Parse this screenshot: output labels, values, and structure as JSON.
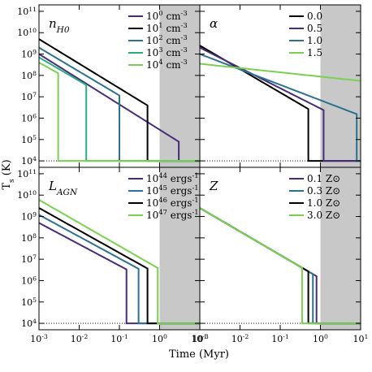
{
  "figure": {
    "xlabel": "Time (Myr)",
    "ylabel": "T_s (K)",
    "x_tick_labels": [
      "10^-3",
      "10^-2",
      "10^-1",
      "10^0",
      "10^1"
    ],
    "y_tick_labels": [
      "10^4",
      "10^5",
      "10^6",
      "10^7",
      "10^8",
      "10^9",
      "10^10",
      "10^11"
    ]
  },
  "chart_data": [
    {
      "type": "line",
      "panel_label": "n_H0",
      "xscale": "log",
      "yscale": "log",
      "xlim": [
        0.001,
        10
      ],
      "ylim": [
        5000,
        200000000000
      ],
      "shaded_region_x": [
        1,
        10
      ],
      "floor_line": {
        "y": 10000,
        "style": "dotted"
      },
      "legend_position": "top-right",
      "series": [
        {
          "name": "10^0 cm^-3",
          "color": "#472c7a",
          "start_temp": 1000000000,
          "slope": -1.18,
          "cutoff_time": 3.0
        },
        {
          "name": "10^1 cm^-3",
          "color": "#000000",
          "start_temp": 5000000000,
          "slope": -1.15,
          "cutoff_time": 0.5
        },
        {
          "name": "10^2 cm^-3",
          "color": "#2c728e",
          "start_temp": 2000000000,
          "slope": -1.12,
          "cutoff_time": 0.1
        },
        {
          "name": "10^3 cm^-3",
          "color": "#28ae80",
          "start_temp": 700000000,
          "slope": -1.1,
          "cutoff_time": 0.015
        },
        {
          "name": "10^4 cm^-3",
          "color": "#7ad151",
          "start_temp": 400000000,
          "slope": -1.05,
          "cutoff_time": 0.003
        }
      ]
    },
    {
      "type": "line",
      "panel_label": "α",
      "xscale": "log",
      "yscale": "log",
      "xlim": [
        0.001,
        10
      ],
      "ylim": [
        5000,
        200000000000
      ],
      "shaded_region_x": [
        1,
        10
      ],
      "floor_line": {
        "y": 10000,
        "style": "dotted"
      },
      "legend_position": "top-right",
      "series": [
        {
          "name": "0.0",
          "color": "#000000",
          "start_temp": 2500000000,
          "slope": -1.1,
          "cutoff_time": 0.5
        },
        {
          "name": "0.5",
          "color": "#472c7a",
          "start_temp": 2000000000,
          "slope": -0.95,
          "cutoff_time": 1.2
        },
        {
          "name": "1.0",
          "color": "#2c728e",
          "start_temp": 1000000000,
          "slope": -0.72,
          "cutoff_time": 8.0
        },
        {
          "name": "1.5",
          "color": "#7ad151",
          "start_temp": 350000000,
          "slope": -0.2,
          "cutoff_time": 100
        }
      ]
    },
    {
      "type": "line",
      "panel_label": "L_AGN",
      "xscale": "log",
      "yscale": "log",
      "xlim": [
        0.001,
        10
      ],
      "ylim": [
        5000,
        200000000000
      ],
      "shaded_region_x": [
        1,
        10
      ],
      "floor_line": {
        "y": 10000,
        "style": "dotted"
      },
      "legend_position": "top-right",
      "series": [
        {
          "name": "10^44 ergs^-1",
          "color": "#472c7a",
          "start_temp": 500000000,
          "slope": -1.0,
          "cutoff_time": 0.15
        },
        {
          "name": "10^45 ergs^-1",
          "color": "#2c728e",
          "start_temp": 1200000000,
          "slope": -1.02,
          "cutoff_time": 0.3
        },
        {
          "name": "10^46 ergs^-1",
          "color": "#000000",
          "start_temp": 2500000000,
          "slope": -1.05,
          "cutoff_time": 0.5
        },
        {
          "name": "10^47 ergs^-1",
          "color": "#7ad151",
          "start_temp": 6000000000,
          "slope": -1.08,
          "cutoff_time": 0.9
        }
      ]
    },
    {
      "type": "line",
      "panel_label": "Z",
      "xscale": "log",
      "yscale": "log",
      "xlim": [
        0.001,
        10
      ],
      "ylim": [
        5000,
        200000000000
      ],
      "shaded_region_x": [
        1,
        10
      ],
      "floor_line": {
        "y": 10000,
        "style": "dotted"
      },
      "legend_position": "top-right",
      "series": [
        {
          "name": "0.1 Z⊙",
          "color": "#472c7a",
          "start_temp": 2500000000,
          "slope": -1.1,
          "cutoff_time": 0.8
        },
        {
          "name": "0.3 Z⊙",
          "color": "#2c728e",
          "start_temp": 2500000000,
          "slope": -1.1,
          "cutoff_time": 0.65
        },
        {
          "name": "1.0 Z⊙",
          "color": "#000000",
          "start_temp": 2500000000,
          "slope": -1.1,
          "cutoff_time": 0.5
        },
        {
          "name": "3.0 Z⊙",
          "color": "#7ad151",
          "start_temp": 2500000000,
          "slope": -1.1,
          "cutoff_time": 0.35
        }
      ]
    }
  ]
}
